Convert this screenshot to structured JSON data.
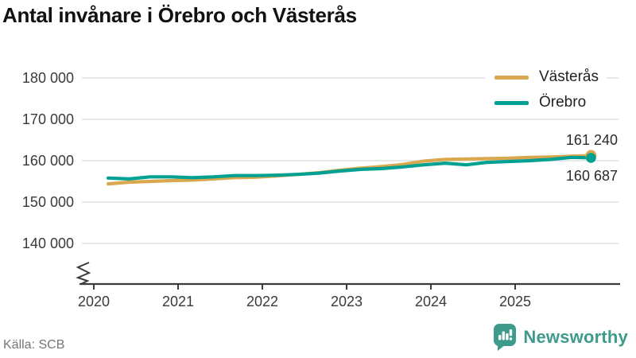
{
  "chart_data": {
    "type": "line",
    "title": "Antal invånare i Örebro och Västerås",
    "source": "Källa: SCB",
    "legend_position": "top-right",
    "grid": "horizontal",
    "axis_break": true,
    "ylim": [
      140000,
      180000
    ],
    "yticks": [
      {
        "value": 180000,
        "label": "180 000"
      },
      {
        "value": 170000,
        "label": "170 000"
      },
      {
        "value": 160000,
        "label": "160 000"
      },
      {
        "value": 150000,
        "label": "150 000"
      },
      {
        "value": 140000,
        "label": "140 000"
      }
    ],
    "xticks": [
      {
        "value": 2020,
        "label": "2020"
      },
      {
        "value": 2021,
        "label": "2021"
      },
      {
        "value": 2022,
        "label": "2022"
      },
      {
        "value": 2023,
        "label": "2023"
      },
      {
        "value": 2024,
        "label": "2024"
      },
      {
        "value": 2025,
        "label": "2025"
      }
    ],
    "x": [
      2020.17,
      2020.42,
      2020.67,
      2020.92,
      2021.17,
      2021.42,
      2021.67,
      2021.92,
      2022.17,
      2022.42,
      2022.67,
      2022.92,
      2023.17,
      2023.42,
      2023.67,
      2023.92,
      2024.17,
      2024.42,
      2024.67,
      2024.92,
      2025.17,
      2025.42,
      2025.67,
      2025.9
    ],
    "series": [
      {
        "id": "vasteras",
        "name": "Västerås",
        "color": "#D9A84E",
        "end_label": "161 240",
        "final_value": 161240,
        "values": [
          154400,
          154800,
          155000,
          155200,
          155300,
          155600,
          155900,
          156000,
          156300,
          156700,
          157100,
          157700,
          158200,
          158600,
          159100,
          159900,
          160300,
          160400,
          160500,
          160600,
          160800,
          160900,
          161100,
          161240
        ]
      },
      {
        "id": "orebro",
        "name": "Örebro",
        "color": "#00A092",
        "end_label": "160 687",
        "final_value": 160687,
        "values": [
          155800,
          155600,
          156100,
          156100,
          155900,
          156100,
          156400,
          156400,
          156500,
          156700,
          157000,
          157500,
          157900,
          158100,
          158500,
          159000,
          159400,
          159000,
          159600,
          159800,
          160000,
          160300,
          160800,
          160687
        ]
      }
    ]
  },
  "footer": {
    "brand": {
      "name": "Newsworthy",
      "color": "#3E9B8C"
    }
  }
}
